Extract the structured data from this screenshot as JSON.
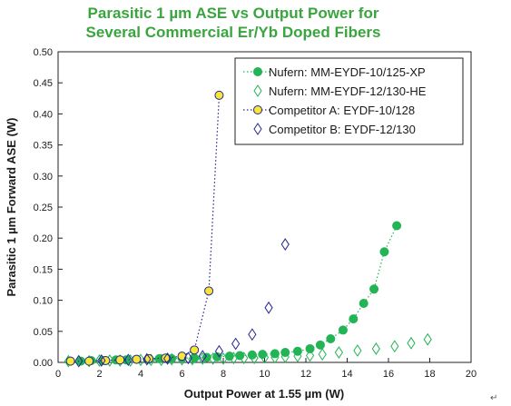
{
  "chart_data": {
    "type": "scatter",
    "title_lines": [
      "Parasitic 1 µm ASE vs Output Power for",
      "Several Commercial Er/Yb Doped Fibers"
    ],
    "xlabel": "Output Power at 1.55 µm (W)",
    "ylabel": "Parasitic 1 µm Forward ASE (W)",
    "xlim": [
      0,
      20
    ],
    "ylim": [
      0,
      0.5
    ],
    "xticks": [
      0,
      2,
      4,
      6,
      8,
      10,
      12,
      14,
      16,
      18,
      20
    ],
    "yticks": [
      0.0,
      0.05,
      0.1,
      0.15,
      0.2,
      0.25,
      0.3,
      0.35,
      0.4,
      0.45,
      0.5
    ],
    "ytick_labels": [
      "0.00",
      "0.05",
      "0.10",
      "0.15",
      "0.20",
      "0.25",
      "0.30",
      "0.35",
      "0.40",
      "0.45",
      "0.50"
    ],
    "grid": false,
    "legend_position": "top-right",
    "corner_mark": "↵",
    "series": [
      {
        "name": "Nufern: MM-EYDF-10/125-XP",
        "marker": "circle",
        "filled": true,
        "line": "dotted",
        "color": "#22b455",
        "fill": "#22b455",
        "x": [
          0.6,
          1.1,
          1.6,
          2.1,
          2.6,
          3.1,
          3.6,
          4.1,
          4.6,
          5.1,
          5.6,
          6.1,
          6.6,
          7.1,
          7.6,
          8.1,
          8.6,
          9.1,
          9.6,
          10.1,
          10.6,
          11.1,
          11.6,
          12.1,
          12.6,
          13.1,
          13.6,
          14.1,
          14.6,
          15.1,
          15.6,
          16.1,
          16.6
        ],
        "y": [
          0.002,
          0.002,
          0.003,
          0.003,
          0.004,
          0.004,
          0.005,
          0.005,
          0.006,
          0.006,
          0.007,
          0.007,
          0.008,
          0.009,
          0.01,
          0.011,
          0.012,
          0.013,
          0.014,
          0.016,
          0.018,
          0.022,
          0.028,
          0.038,
          0.05,
          0.07,
          0.09,
          0.12,
          0.15,
          0.178,
          0.2,
          0.22,
          0.22
        ],
        "points_x": [
          0.6,
          1.1,
          1.6,
          2.2,
          2.8,
          3.3,
          3.8,
          4.4,
          4.9,
          5.5,
          6.0,
          6.6,
          7.2,
          7.7,
          8.3,
          8.8,
          9.4,
          9.9,
          10.5,
          11.0,
          11.6,
          12.2,
          12.7,
          13.2,
          13.8,
          14.3,
          14.8,
          15.3,
          15.8,
          16.4
        ],
        "points_y": [
          0.002,
          0.002,
          0.003,
          0.003,
          0.004,
          0.004,
          0.005,
          0.005,
          0.006,
          0.006,
          0.007,
          0.007,
          0.008,
          0.009,
          0.01,
          0.011,
          0.012,
          0.013,
          0.014,
          0.016,
          0.018,
          0.022,
          0.028,
          0.038,
          0.052,
          0.07,
          0.095,
          0.118,
          0.178,
          0.22
        ]
      },
      {
        "name": "Nufern: MM-EYDF-12/130-HE",
        "marker": "diamond",
        "filled": false,
        "line": "none",
        "color": "#22b455",
        "fill": "none",
        "points_x": [
          0.5,
          1.0,
          1.5,
          2.0,
          2.5,
          3.0,
          3.5,
          4.0,
          4.5,
          5.0,
          5.5,
          6.0,
          6.5,
          7.0,
          7.5,
          8.0,
          8.5,
          9.0,
          9.5,
          10.0,
          10.5,
          11.0,
          11.6,
          12.2,
          12.8,
          13.6,
          14.5,
          15.4,
          16.3,
          17.1,
          17.9
        ],
        "points_y": [
          0.002,
          0.002,
          0.002,
          0.003,
          0.003,
          0.003,
          0.003,
          0.004,
          0.004,
          0.004,
          0.005,
          0.005,
          0.005,
          0.006,
          0.006,
          0.006,
          0.007,
          0.007,
          0.007,
          0.008,
          0.008,
          0.009,
          0.01,
          0.011,
          0.013,
          0.016,
          0.019,
          0.022,
          0.026,
          0.031,
          0.037
        ]
      },
      {
        "name": "Competitor A: EYDF-10/128",
        "marker": "circle",
        "filled": true,
        "line": "dotted",
        "color": "#26268f",
        "fill": "#f7e637",
        "points_x": [
          0.6,
          1.5,
          2.3,
          3.0,
          3.8,
          4.4,
          5.2,
          6.0,
          6.6,
          7.3,
          7.8
        ],
        "points_y": [
          0.002,
          0.002,
          0.003,
          0.004,
          0.005,
          0.006,
          0.007,
          0.01,
          0.02,
          0.115,
          0.43
        ]
      },
      {
        "name": "Competitor B: EYDF-12/130",
        "marker": "diamond",
        "filled": false,
        "line": "none",
        "color": "#26268f",
        "fill": "none",
        "points_x": [
          1.0,
          2.1,
          3.4,
          4.3,
          5.3,
          6.3,
          7.0,
          7.8,
          8.6,
          9.4,
          10.2,
          11.0
        ],
        "points_y": [
          0.002,
          0.003,
          0.004,
          0.005,
          0.006,
          0.007,
          0.01,
          0.018,
          0.03,
          0.045,
          0.088,
          0.19
        ]
      }
    ]
  }
}
